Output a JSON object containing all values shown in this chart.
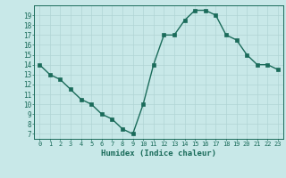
{
  "x": [
    0,
    1,
    2,
    3,
    4,
    5,
    6,
    7,
    8,
    9,
    10,
    11,
    12,
    13,
    14,
    15,
    16,
    17,
    18,
    19,
    20,
    21,
    22,
    23
  ],
  "y": [
    14.0,
    13.0,
    12.5,
    11.5,
    10.5,
    10.0,
    9.0,
    8.5,
    7.5,
    7.0,
    10.0,
    14.0,
    17.0,
    17.0,
    18.5,
    19.5,
    19.5,
    19.0,
    17.0,
    16.5,
    15.0,
    14.0,
    14.0,
    13.5
  ],
  "xlabel": "Humidex (Indice chaleur)",
  "xlim": [
    -0.5,
    23.5
  ],
  "ylim": [
    6.5,
    20.0
  ],
  "yticks": [
    7,
    8,
    9,
    10,
    11,
    12,
    13,
    14,
    15,
    16,
    17,
    18,
    19
  ],
  "line_color": "#1a6b5a",
  "marker_color": "#1a6b5a",
  "bg_color": "#c8e8e8",
  "grid_color": "#b0d4d4",
  "label_color": "#1a6b5a",
  "tick_color": "#1a6b5a"
}
